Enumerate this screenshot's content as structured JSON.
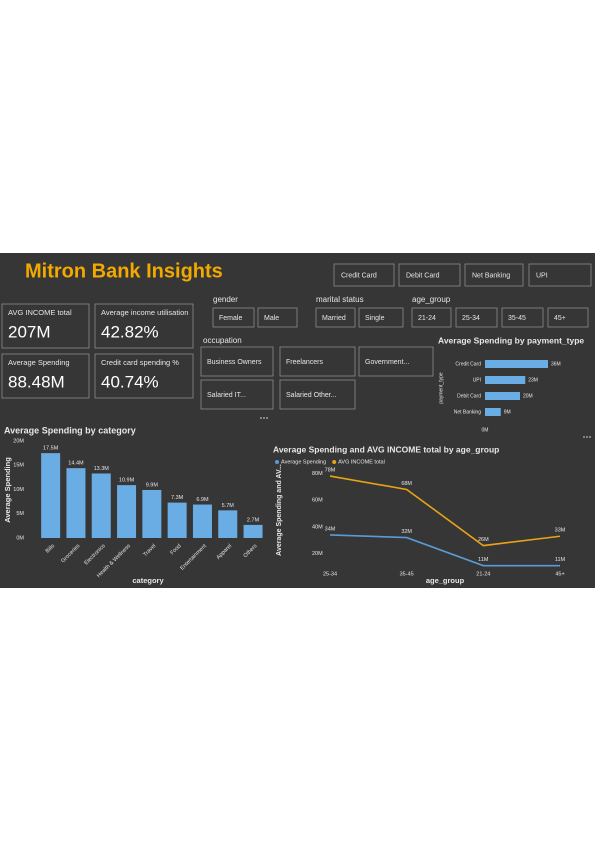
{
  "title": "Mitron Bank Insights",
  "payment_slicer": [
    "Credit Card",
    "Debit Card",
    "Net Banking",
    "UPI"
  ],
  "kpis": [
    {
      "label": "AVG INCOME total",
      "value": "207M"
    },
    {
      "label": "Average income utilisation",
      "value": "42.82%"
    },
    {
      "label": "Average Spending",
      "value": "88.48M"
    },
    {
      "label": "Credit card spending %",
      "value": "40.74%"
    }
  ],
  "filters": [
    {
      "label": "gender",
      "options": [
        "Female",
        "Male"
      ]
    },
    {
      "label": "marital status",
      "options": [
        "Married",
        "Single"
      ]
    },
    {
      "label": "age_group",
      "options": [
        "21-24",
        "25-34",
        "35-45",
        "45+"
      ]
    },
    {
      "label": "occupation",
      "options": [
        "Business Owners",
        "Freelancers",
        "Government...",
        "Salaried IT...",
        "Salaried Other..."
      ]
    }
  ],
  "category_chart": {
    "type": "bar",
    "title": "Average Spending by category",
    "x_label": "category",
    "y_label": "Average Spending",
    "categories": [
      "Bills",
      "Groceries",
      "Electronics",
      "Health & Wellness",
      "Travel",
      "Food",
      "Entertainment",
      "Apparel",
      "Others"
    ],
    "values": [
      17.5,
      14.4,
      13.3,
      10.9,
      9.9,
      7.3,
      6.9,
      5.7,
      2.7
    ],
    "value_labels": [
      "17.5M",
      "14.4M",
      "13.3M",
      "10.9M",
      "9.9M",
      "7.3M",
      "6.9M",
      "5.7M",
      "2.7M"
    ],
    "color": "#6aade4",
    "ylim": [
      0,
      20
    ],
    "yticks": [
      {
        "value": 0,
        "label": "0M"
      },
      {
        "value": 5,
        "label": "5M"
      },
      {
        "value": 10,
        "label": "10M"
      },
      {
        "value": 15,
        "label": "15M"
      },
      {
        "value": 20,
        "label": "20M"
      }
    ]
  },
  "payment_chart": {
    "type": "hbar",
    "title": "Average Spending by payment_type",
    "y_label": "payment_type",
    "categories": [
      "Credit Card",
      "UPI",
      "Debit Card",
      "Net Banking"
    ],
    "values": [
      36,
      23,
      20,
      9
    ],
    "value_labels": [
      "36M",
      "23M",
      "20M",
      "9M"
    ],
    "color": "#6aade4",
    "xlim": [
      0,
      40
    ],
    "xticks": [
      {
        "value": 0,
        "label": "0M"
      }
    ]
  },
  "age_chart": {
    "type": "line",
    "title": "Average Spending and AVG INCOME total by age_group",
    "x_label": "age_group",
    "y_label": "Average Spending and AV...",
    "categories": [
      "25-34",
      "35-45",
      "21-24",
      "45+"
    ],
    "series": [
      {
        "name": "Average Spending",
        "color": "#5b9bd5",
        "values": [
          34,
          32,
          11,
          11
        ],
        "value_labels": [
          "34M",
          "32M",
          "11M",
          "11M"
        ]
      },
      {
        "name": "AVG INCOME total",
        "color": "#e8a317",
        "values": [
          78,
          68,
          26,
          33
        ],
        "value_labels": [
          "78M",
          "68M",
          "26M",
          "33M"
        ]
      }
    ],
    "ylim": [
      10,
      80
    ],
    "yticks": [
      {
        "value": 20,
        "label": "20M"
      },
      {
        "value": 40,
        "label": "40M"
      },
      {
        "value": 60,
        "label": "60M"
      },
      {
        "value": 80,
        "label": "80M"
      }
    ]
  }
}
